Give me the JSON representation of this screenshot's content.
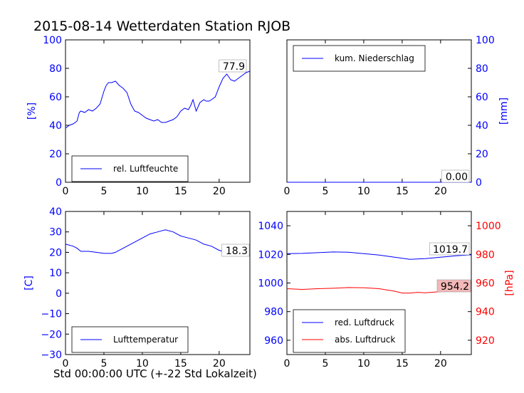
{
  "title": "2015-08-14 Wetterdaten Station RJOB",
  "xlabel": "Std 00:00:00 UTC (+-22 Std Lokalzeit)",
  "colors": {
    "blue": "#0000ff",
    "red": "#ff0000",
    "value_box_red": "#f4b8b8"
  },
  "chart_data": [
    {
      "type": "line",
      "id": "humidity",
      "ylabel": "[%]",
      "xlim": [
        0,
        24
      ],
      "ylim": [
        0,
        100
      ],
      "xticks": [
        0,
        5,
        10,
        15,
        20
      ],
      "yticks": [
        0,
        20,
        40,
        60,
        80,
        100
      ],
      "legend_position": "lower-left",
      "current_value": "77.9",
      "series": [
        {
          "name": "rel. Luftfeuchte",
          "color": "#0000ff",
          "x": [
            0,
            0.5,
            1,
            1.5,
            1.8,
            2,
            2.5,
            3,
            3.5,
            4,
            4.5,
            5,
            5.3,
            5.6,
            6,
            6.5,
            7,
            7.5,
            8,
            8.5,
            9,
            9.5,
            10,
            10.5,
            11,
            11.5,
            12,
            12.5,
            13,
            13.5,
            14,
            14.5,
            15,
            15.5,
            16,
            16.3,
            16.6,
            17,
            17.5,
            18,
            18.3,
            18.7,
            19,
            19.5,
            20,
            20.5,
            21,
            21.5,
            22,
            22.5,
            23,
            23.5,
            24
          ],
          "y": [
            38,
            40,
            41,
            43,
            49,
            50,
            49,
            51,
            50,
            52,
            55,
            64,
            68,
            70,
            70,
            71,
            68,
            66,
            63,
            55,
            50,
            49,
            47,
            45,
            44,
            43,
            44,
            42,
            42,
            43,
            44,
            46,
            50,
            52,
            51,
            54,
            58,
            50,
            56,
            58,
            57,
            57,
            58,
            60,
            67,
            73,
            76,
            72,
            71,
            73,
            75,
            77,
            78
          ]
        }
      ]
    },
    {
      "type": "line",
      "id": "precipitation",
      "ylabel": "[mm]",
      "xlim": [
        0,
        24
      ],
      "ylim": [
        0,
        100
      ],
      "xticks": [
        0,
        5,
        10,
        15,
        20
      ],
      "yticks": [
        0,
        20,
        40,
        60,
        80,
        100
      ],
      "legend_position": "upper-left",
      "current_value": "0.00",
      "series": [
        {
          "name": "kum. Niederschlag",
          "color": "#0000ff",
          "x": [
            0,
            24
          ],
          "y": [
            0,
            0
          ]
        }
      ]
    },
    {
      "type": "line",
      "id": "temperature",
      "ylabel": "[C]",
      "xlim": [
        0,
        24
      ],
      "ylim": [
        -30,
        40
      ],
      "xticks": [
        0,
        5,
        10,
        15,
        20
      ],
      "yticks": [
        -30,
        -20,
        -10,
        0,
        10,
        20,
        30,
        40
      ],
      "legend_position": "lower-left",
      "current_value": "18.3",
      "series": [
        {
          "name": "Lufttemperatur",
          "color": "#0000ff",
          "x": [
            0,
            1,
            1.5,
            2,
            3,
            4,
            5,
            6,
            6.5,
            7,
            8,
            9,
            10,
            11,
            12,
            13,
            14,
            15,
            16,
            17,
            18,
            19,
            20,
            21,
            22,
            23,
            24
          ],
          "y": [
            24,
            23,
            22,
            20.5,
            20.5,
            20,
            19.5,
            19.5,
            20,
            21,
            23,
            25,
            27,
            29,
            30,
            31,
            30,
            28,
            27,
            26,
            24,
            23,
            21,
            20,
            19.5,
            19,
            18.3
          ]
        }
      ]
    },
    {
      "type": "line",
      "id": "pressure",
      "ylabel": "[hPa]",
      "xlim": [
        0,
        24
      ],
      "ylim": [
        950,
        1050
      ],
      "ylim_right": [
        910,
        1010
      ],
      "xticks": [
        0,
        5,
        10,
        15,
        20
      ],
      "yticks": [
        960,
        980,
        1000,
        1020,
        1040
      ],
      "yticks_right": [
        920,
        940,
        960,
        980,
        1000
      ],
      "legend_position": "lower-left",
      "current_values": [
        "1019.7",
        "954.2"
      ],
      "series": [
        {
          "name": "red. Luftdruck",
          "color": "#0000ff",
          "axis": "left",
          "x": [
            0,
            2,
            4,
            6,
            8,
            10,
            12,
            14,
            16,
            18,
            20,
            22,
            24
          ],
          "y": [
            1020.5,
            1020.7,
            1021.2,
            1021.7,
            1021.5,
            1020.5,
            1019.5,
            1018,
            1016.5,
            1017,
            1018,
            1019,
            1019.7
          ]
        },
        {
          "name": "abs. Luftdruck",
          "color": "#ff0000",
          "axis": "right",
          "x": [
            0,
            2,
            4,
            6,
            8,
            10,
            12,
            14,
            15,
            16,
            17,
            18,
            20,
            22,
            24
          ],
          "y": [
            956,
            955.5,
            956,
            956.3,
            956.8,
            956.7,
            956,
            954.3,
            953,
            953,
            953.5,
            953.2,
            954,
            954.3,
            954.2
          ]
        }
      ]
    }
  ]
}
